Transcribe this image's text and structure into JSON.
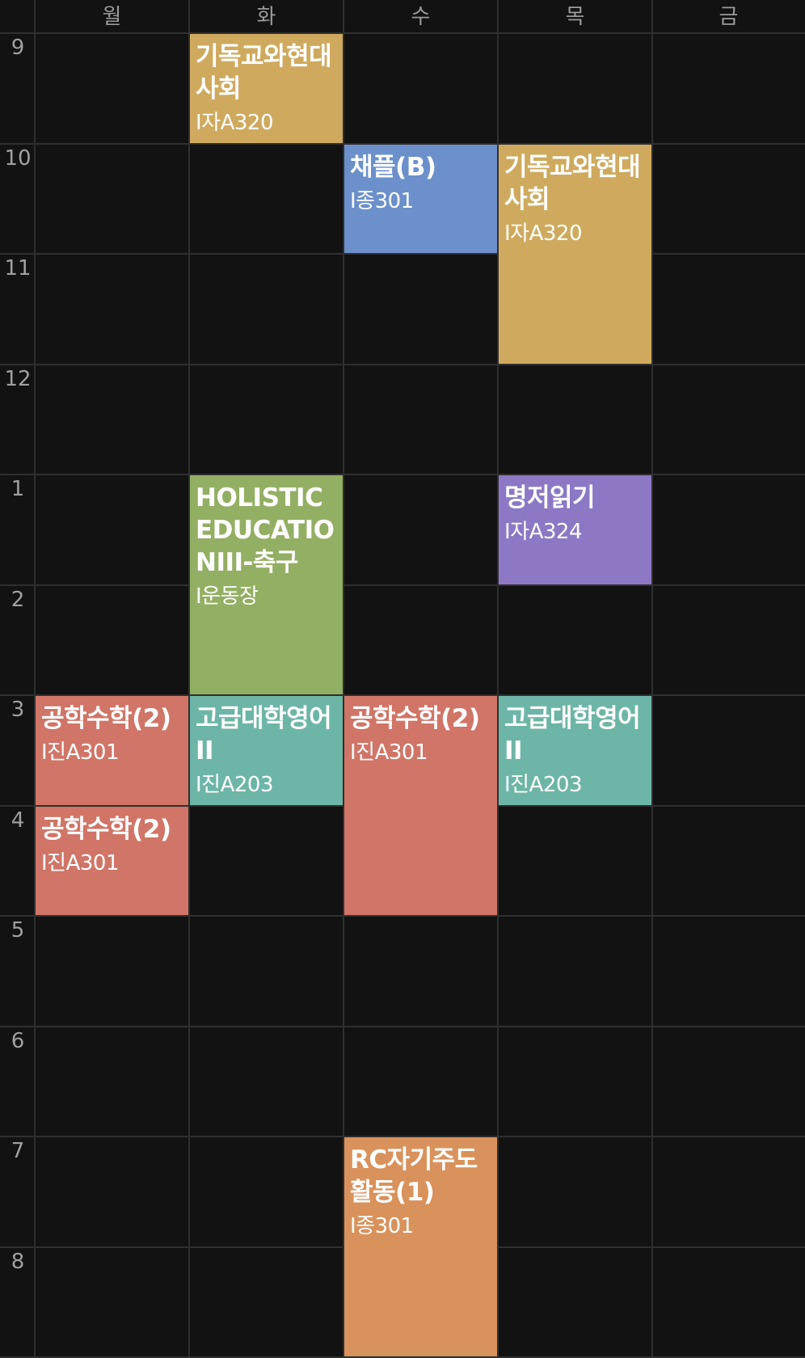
{
  "days": [
    "월",
    "화",
    "수",
    "목",
    "금"
  ],
  "hours": [
    "9",
    "10",
    "11",
    "12",
    "1",
    "2",
    "3",
    "4",
    "5",
    "6",
    "7",
    "8"
  ],
  "colors": {
    "background": "#121212",
    "grid_line": "#2f2f2f",
    "mustard": "#cfaa5e",
    "blue": "#6b90cb",
    "green": "#93af63",
    "purple": "#8c78c5",
    "coral": "#d07567",
    "teal": "#6db6a7",
    "orange": "#d9925b"
  },
  "courses": [
    {
      "title": "기독교와현대사회",
      "room": "I자A320",
      "color": "#cfaa5e"
    },
    {
      "title": "채플(B)",
      "room": "I종301",
      "color": "#6b90cb"
    },
    {
      "title": "기독교와현대사회",
      "room": "I자A320",
      "color": "#cfaa5e"
    },
    {
      "title": "HOLISTIC EDUCATIONIII-축구",
      "room": "I운동장",
      "color": "#93af63"
    },
    {
      "title": "명저읽기",
      "room": "I자A324",
      "color": "#8c78c5"
    },
    {
      "title": "공학수학(2)",
      "room": "I진A301",
      "color": "#d07567"
    },
    {
      "title": "고급대학영어II",
      "room": "I진A203",
      "color": "#6db6a7"
    },
    {
      "title": "공학수학(2)",
      "room": "I진A301",
      "color": "#d07567"
    },
    {
      "title": "고급대학영어II",
      "room": "I진A203",
      "color": "#6db6a7"
    },
    {
      "title": "공학수학(2)",
      "room": "I진A301",
      "color": "#d07567"
    },
    {
      "title": "RC자기주도활동(1)",
      "room": "I종301",
      "color": "#d9925b"
    }
  ]
}
